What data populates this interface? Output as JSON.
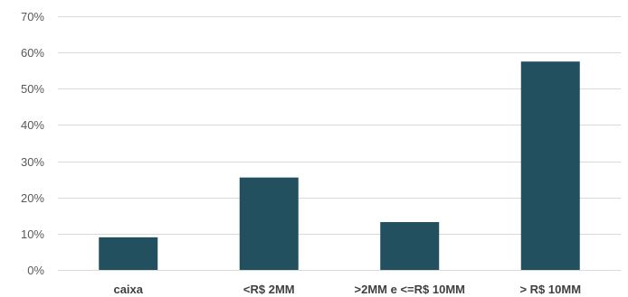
{
  "chart_data": {
    "type": "bar",
    "title": "",
    "xlabel": "",
    "ylabel": "",
    "categories": [
      "caixa",
      "<R$ 2MM",
      ">2MM e <=R$ 10MM",
      "> R$ 10MM"
    ],
    "values": [
      0.09,
      0.255,
      0.132,
      0.575
    ],
    "ylim": [
      0,
      0.7
    ],
    "yticks": [
      0,
      0.1,
      0.2,
      0.3,
      0.4,
      0.5,
      0.6,
      0.7
    ],
    "ytick_labels": [
      "0%",
      "10%",
      "20%",
      "30%",
      "40%",
      "50%",
      "60%",
      "70%"
    ],
    "grid": true,
    "legend": "none",
    "bar_color": "#23505f",
    "grid_color": "#d9d9d9"
  }
}
